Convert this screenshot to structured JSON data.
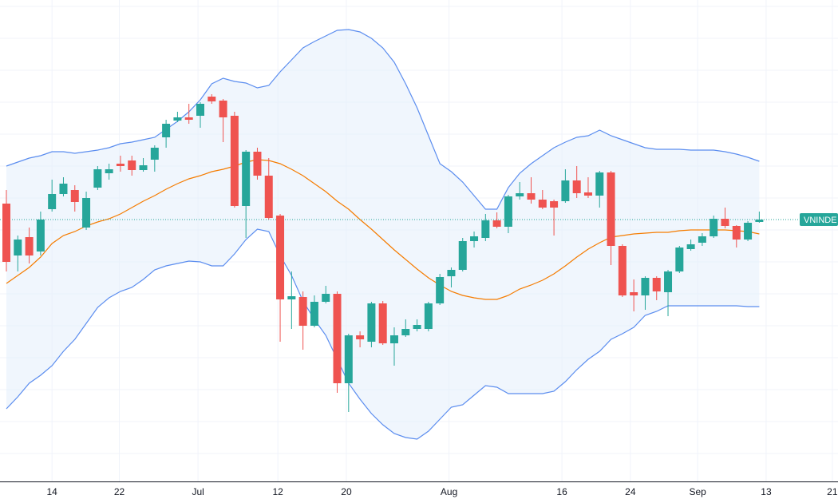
{
  "chart_data": {
    "type": "candlestick",
    "up_color": "#26a69a",
    "down_color": "#ef5350",
    "band_color": "#5b8def",
    "band_fill": "#e3eefb",
    "middle_color": "#f57c00",
    "xlim": [
      -0.56,
      72.9
    ],
    "xticks": [
      {
        "value": 4,
        "label": "14"
      },
      {
        "value": 9.9,
        "label": "22"
      },
      {
        "value": 16.8,
        "label": "Jul"
      },
      {
        "value": 23.8,
        "label": "12"
      },
      {
        "value": 29.8,
        "label": "20"
      },
      {
        "value": 38.8,
        "label": "Aug"
      },
      {
        "value": 48.7,
        "label": "16"
      },
      {
        "value": 54.7,
        "label": "24"
      },
      {
        "value": 60.6,
        "label": "Sep"
      },
      {
        "value": 66.6,
        "label": "13"
      },
      {
        "value": 72.4,
        "label": "21"
      }
    ],
    "ylim": [
      0,
      600
    ],
    "yticks": [
      32,
      72,
      112,
      152,
      192,
      232,
      272,
      312,
      352,
      392,
      432,
      472,
      512,
      552,
      592
    ],
    "grid": true,
    "price_label": "VNINDE",
    "open": [
      345,
      280,
      303,
      285,
      338,
      357,
      362,
      315,
      365,
      383,
      395,
      399,
      387,
      400,
      428,
      449,
      453,
      455,
      479,
      474,
      455,
      342,
      410,
      380,
      330,
      225,
      228,
      192,
      222,
      232,
      120,
      180,
      172,
      220,
      170,
      180,
      188,
      188,
      220,
      254,
      262,
      298,
      302,
      324,
      316,
      354,
      358,
      350,
      348,
      348,
      374,
      359,
      355,
      384,
      292,
      234,
      230,
      252,
      234,
      260,
      288,
      296,
      304,
      326,
      317,
      300,
      322
    ],
    "high": [
      362,
      305,
      315,
      335,
      375,
      378,
      368,
      360,
      392,
      395,
      405,
      405,
      402,
      418,
      450,
      460,
      470,
      472,
      482,
      476,
      460,
      412,
      415,
      402,
      332,
      260,
      235,
      230,
      242,
      235,
      182,
      185,
      222,
      223,
      190,
      200,
      200,
      222,
      257,
      265,
      302,
      310,
      332,
      334,
      356,
      372,
      378,
      362,
      350,
      388,
      392,
      378,
      386,
      386,
      294,
      250,
      254,
      254,
      262,
      292,
      300,
      308,
      330,
      340,
      318,
      323,
      335
    ],
    "low": [
      260,
      260,
      270,
      280,
      335,
      354,
      335,
      312,
      362,
      375,
      385,
      380,
      385,
      385,
      415,
      447,
      445,
      440,
      470,
      422,
      340,
      302,
      375,
      325,
      172,
      188,
      162,
      190,
      220,
      108,
      84,
      165,
      165,
      168,
      142,
      178,
      185,
      185,
      218,
      240,
      260,
      290,
      298,
      314,
      308,
      350,
      345,
      338,
      305,
      346,
      352,
      352,
      340,
      268,
      228,
      210,
      212,
      224,
      204,
      258,
      286,
      292,
      302,
      314,
      290,
      298,
      321
    ],
    "close": [
      272,
      300,
      280,
      325,
      357,
      370,
      347,
      352,
      388,
      388,
      392,
      387,
      393,
      415,
      445,
      453,
      450,
      470,
      473,
      453,
      342,
      410,
      380,
      327,
      225,
      229,
      192,
      222,
      232,
      120,
      180,
      175,
      220,
      170,
      180,
      188,
      193,
      220,
      253,
      262,
      298,
      304,
      324,
      316,
      354,
      358,
      350,
      340,
      340,
      374,
      358,
      355,
      384,
      292,
      230,
      230,
      252,
      235,
      260,
      290,
      294,
      304,
      326,
      317,
      300,
      321,
      325
    ],
    "upper": [
      392,
      397,
      402,
      405,
      410,
      410,
      408,
      410,
      412,
      415,
      420,
      422,
      425,
      428,
      438,
      448,
      460,
      475,
      495,
      502,
      498,
      496,
      490,
      493,
      510,
      525,
      540,
      548,
      555,
      562,
      563,
      560,
      552,
      540,
      522,
      495,
      465,
      430,
      395,
      385,
      372,
      355,
      338,
      338,
      365,
      383,
      395,
      405,
      415,
      422,
      428,
      430,
      437,
      430,
      425,
      420,
      415,
      413,
      413,
      413,
      412,
      412,
      412,
      410,
      407,
      403,
      398
    ],
    "middle": [
      245,
      255,
      265,
      278,
      295,
      305,
      310,
      317,
      322,
      326,
      332,
      340,
      348,
      355,
      363,
      370,
      376,
      380,
      385,
      388,
      392,
      397,
      400,
      399,
      395,
      388,
      380,
      370,
      360,
      348,
      338,
      325,
      313,
      300,
      287,
      275,
      263,
      252,
      243,
      235,
      230,
      227,
      225,
      225,
      230,
      238,
      243,
      249,
      257,
      267,
      278,
      288,
      296,
      303,
      305,
      307,
      308,
      309,
      309,
      311,
      312,
      312,
      312,
      312,
      311,
      310,
      307
    ],
    "lower": [
      88,
      103,
      120,
      130,
      142,
      160,
      175,
      195,
      215,
      227,
      235,
      240,
      250,
      262,
      267,
      270,
      273,
      272,
      267,
      267,
      282,
      300,
      313,
      310,
      280,
      255,
      223,
      200,
      180,
      150,
      120,
      100,
      82,
      68,
      57,
      52,
      50,
      60,
      75,
      90,
      93,
      105,
      117,
      115,
      107,
      107,
      107,
      107,
      110,
      122,
      137,
      150,
      160,
      175,
      182,
      190,
      205,
      210,
      217,
      217,
      217,
      217,
      217,
      217,
      217,
      216,
      216
    ]
  }
}
